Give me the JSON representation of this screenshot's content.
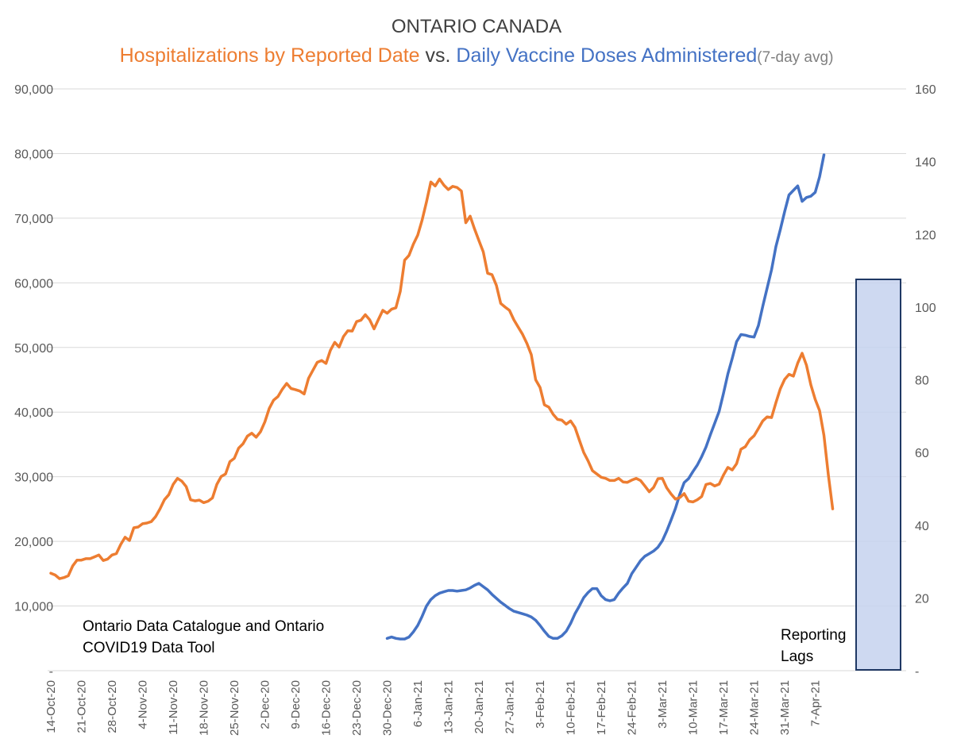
{
  "title": {
    "line1": "ONTARIO CANADA",
    "part_hosp": "Hospitalizations by Reported Date",
    "part_vs": " vs. ",
    "part_vax": "Daily Vaccine Doses Administered",
    "part_avg": "(7-day avg)"
  },
  "notes": {
    "source_line1": "Ontario Data Catalogue and Ontario",
    "source_line2": "COVID19 Data Tool",
    "lag_line1": "Reporting",
    "lag_line2": "Lags"
  },
  "colors": {
    "hospitalizations": "#ED7D31",
    "vaccine": "#4472C4",
    "lag_fill": "#C5D2EE",
    "lag_border": "#1F3864",
    "grid": "#D9D9D9",
    "axis_text": "#595959"
  },
  "chart_data": {
    "type": "line",
    "x_tick_labels": [
      "14-Oct-20",
      "21-Oct-20",
      "28-Oct-20",
      "4-Nov-20",
      "11-Nov-20",
      "18-Nov-20",
      "25-Nov-20",
      "2-Dec-20",
      "9-Dec-20",
      "16-Dec-20",
      "23-Dec-20",
      "30-Dec-20",
      "6-Jan-21",
      "13-Jan-21",
      "20-Jan-21",
      "27-Jan-21",
      "3-Feb-21",
      "10-Feb-21",
      "17-Feb-21",
      "24-Feb-21",
      "3-Mar-21",
      "10-Mar-21",
      "17-Mar-21",
      "24-Mar-21",
      "31-Mar-21",
      "7-Apr-21"
    ],
    "y_left": {
      "min": 0,
      "max": 90000,
      "ticks": [
        "-",
        "10,000",
        "20,000",
        "30,000",
        "40,000",
        "50,000",
        "60,000",
        "70,000",
        "80,000",
        "90,000"
      ]
    },
    "y_right": {
      "min": 0,
      "max": 160,
      "ticks": [
        "-",
        "20",
        "40",
        "60",
        "80",
        "100",
        "120",
        "140",
        "160"
      ]
    },
    "grid": true,
    "series": [
      {
        "name": "Daily Vaccine Doses Administered",
        "axis": "left",
        "x_start": "30-Dec-20",
        "values": [
          5000,
          5200,
          5000,
          4900,
          4900,
          5200,
          6000,
          7000,
          8400,
          10000,
          11000,
          11600,
          12000,
          12200,
          12400,
          12400,
          12300,
          12400,
          12500,
          12800,
          13200,
          13500,
          13000,
          12500,
          11800,
          11200,
          10600,
          10100,
          9600,
          9200,
          9000,
          8800,
          8600,
          8300,
          7800,
          7000,
          6100,
          5300,
          5000,
          5000,
          5400,
          6100,
          7300,
          8800,
          10000,
          11300,
          12100,
          12700,
          12700,
          11600,
          11000,
          10800,
          11000,
          12000,
          12800,
          13500,
          15000,
          16000,
          17000,
          17700,
          18100,
          18500,
          19100,
          20100,
          21600,
          23300,
          25100,
          27300,
          29100,
          29700,
          30800,
          31800,
          33100,
          34600,
          36500,
          38300,
          40100,
          42900,
          45900,
          48300,
          50900,
          52000,
          51900,
          51700,
          51600,
          53400,
          56400,
          59200,
          62000,
          65600,
          68200,
          71000,
          73600,
          74300,
          75000,
          72600,
          73200,
          73400,
          74000,
          76400,
          79800
        ]
      },
      {
        "name": "Hospitalizations by Reported Date",
        "axis": "right",
        "x_start": "14-Oct-20",
        "values": [
          26.8,
          26.3,
          25.3,
          25.6,
          26.1,
          28.8,
          30.4,
          30.4,
          30.8,
          30.8,
          31.3,
          31.8,
          30.3,
          30.7,
          31.8,
          32.2,
          34.7,
          36.7,
          35.8,
          39.3,
          39.5,
          40.4,
          40.6,
          41.0,
          42.4,
          44.5,
          47.0,
          48.4,
          51.2,
          52.9,
          52.1,
          50.6,
          47.0,
          46.7,
          46.9,
          46.2,
          46.6,
          47.5,
          51.2,
          53.4,
          54.1,
          57.5,
          58.4,
          61.2,
          62.4,
          64.5,
          65.3,
          64.2,
          65.7,
          68.4,
          72.1,
          74.4,
          75.4,
          77.4,
          79.0,
          77.6,
          77.3,
          76.9,
          76.1,
          80.4,
          82.6,
          84.8,
          85.3,
          84.5,
          88.1,
          90.3,
          89.0,
          91.9,
          93.5,
          93.4,
          96.0,
          96.4,
          97.9,
          96.5,
          94.0,
          96.6,
          99.1,
          98.3,
          99.4,
          99.8,
          104.3,
          112.9,
          114.2,
          117.3,
          119.8,
          123.9,
          128.9,
          134.4,
          133.3,
          135.2,
          133.5,
          132.3,
          133.2,
          132.9,
          131.9,
          123.2,
          125.0,
          121.5,
          118.3,
          115.2,
          109.3,
          108.9,
          106.0,
          101.0,
          100.0,
          99.1,
          96.5,
          94.5,
          92.5,
          90.0,
          86.9,
          80.0,
          77.9,
          73.1,
          72.5,
          70.5,
          69.1,
          68.9,
          67.8,
          68.7,
          66.9,
          63.4,
          60.0,
          57.7,
          55.0,
          54.1,
          53.2,
          52.9,
          52.3,
          52.3,
          52.9,
          51.9,
          51.8,
          52.4,
          52.9,
          52.3,
          50.8,
          49.2,
          50.4,
          52.8,
          52.9,
          50.3,
          48.6,
          47.2,
          47.6,
          48.7,
          46.6,
          46.4,
          47.0,
          47.9,
          51.2,
          51.5,
          50.8,
          51.3,
          53.8,
          55.9,
          55.2,
          56.9,
          60.9,
          61.6,
          63.5,
          64.6,
          66.6,
          68.7,
          69.8,
          69.6,
          73.7,
          77.5,
          80.1,
          81.5,
          81.0,
          84.6,
          87.3,
          84.0,
          78.6,
          74.6,
          71.5,
          64.7,
          53.9,
          44.5
        ]
      }
    ]
  }
}
